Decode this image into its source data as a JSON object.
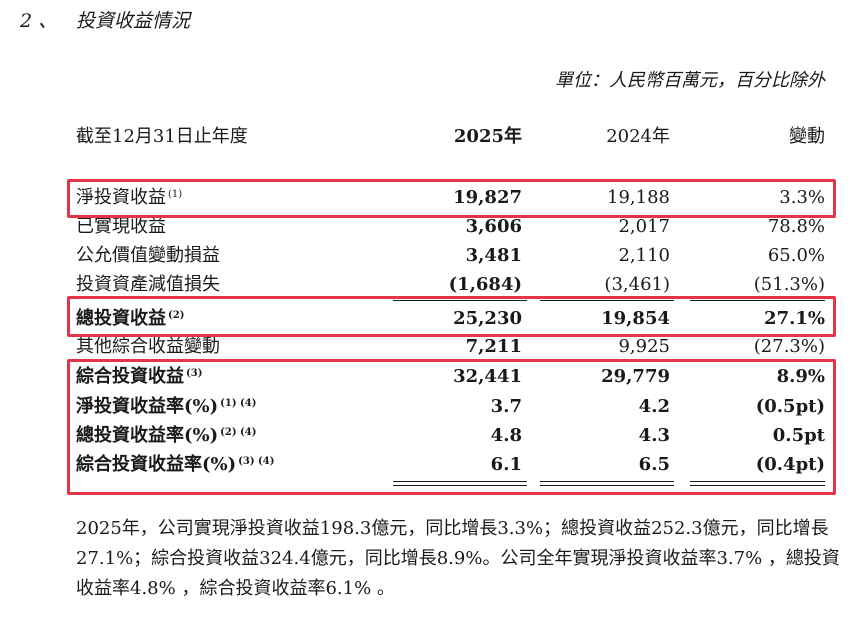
{
  "heading": {
    "number": "2 、",
    "title": "投資收益情況"
  },
  "unit_note": "單位：人民幣百萬元，百分比除外",
  "table": {
    "header": {
      "label": "截至12月31日止年度",
      "col_2025": "2025年",
      "col_2024": "2024年",
      "col_change": "變動"
    },
    "rows": [
      {
        "label": "淨投資收益",
        "note": "(1)",
        "v2025": "19,827",
        "v2024": "19,188",
        "change": "3.3%"
      },
      {
        "label": "已實現收益",
        "note": "",
        "v2025": "3,606",
        "v2024": "2,017",
        "change": "78.8%"
      },
      {
        "label": "公允價值變動損益",
        "note": "",
        "v2025": "3,481",
        "v2024": "2,110",
        "change": "65.0%"
      },
      {
        "label": "投資資產減值損失",
        "note": "",
        "v2025": "(1,684)",
        "v2024": "(3,461)",
        "change": "(51.3%)"
      },
      {
        "label": "總投資收益",
        "note": "(2)",
        "v2025": "25,230",
        "v2024": "19,854",
        "change": "27.1%"
      },
      {
        "label": "其他綜合收益變動",
        "note": "",
        "v2025": "7,211",
        "v2024": "9,925",
        "change": "(27.3%)"
      },
      {
        "label": "綜合投資收益",
        "note": "(3)",
        "v2025": "32,441",
        "v2024": "29,779",
        "change": "8.9%"
      },
      {
        "label": "淨投資收益率(%)",
        "note": "(1) (4)",
        "v2025": "3.7",
        "v2024": "4.2",
        "change": "(0.5pt)"
      },
      {
        "label": "總投資收益率(%)",
        "note": "(2) (4)",
        "v2025": "4.8",
        "v2024": "4.3",
        "change": "0.5pt"
      },
      {
        "label": "綜合投資收益率(%)",
        "note": "(3) (4)",
        "v2025": "6.1",
        "v2024": "6.5",
        "change": "(0.4pt)"
      }
    ]
  },
  "highlight_color": "#e53347",
  "paragraph": "2025年，公司實現淨投資收益198.3億元，同比增長3.3%；總投資收益252.3億元，同比增長27.1%；綜合投資收益324.4億元，同比增長8.9%。公司全年實現淨投資收益率3.7% ，總投資收益率4.8% ，綜合投資收益率6.1% 。"
}
